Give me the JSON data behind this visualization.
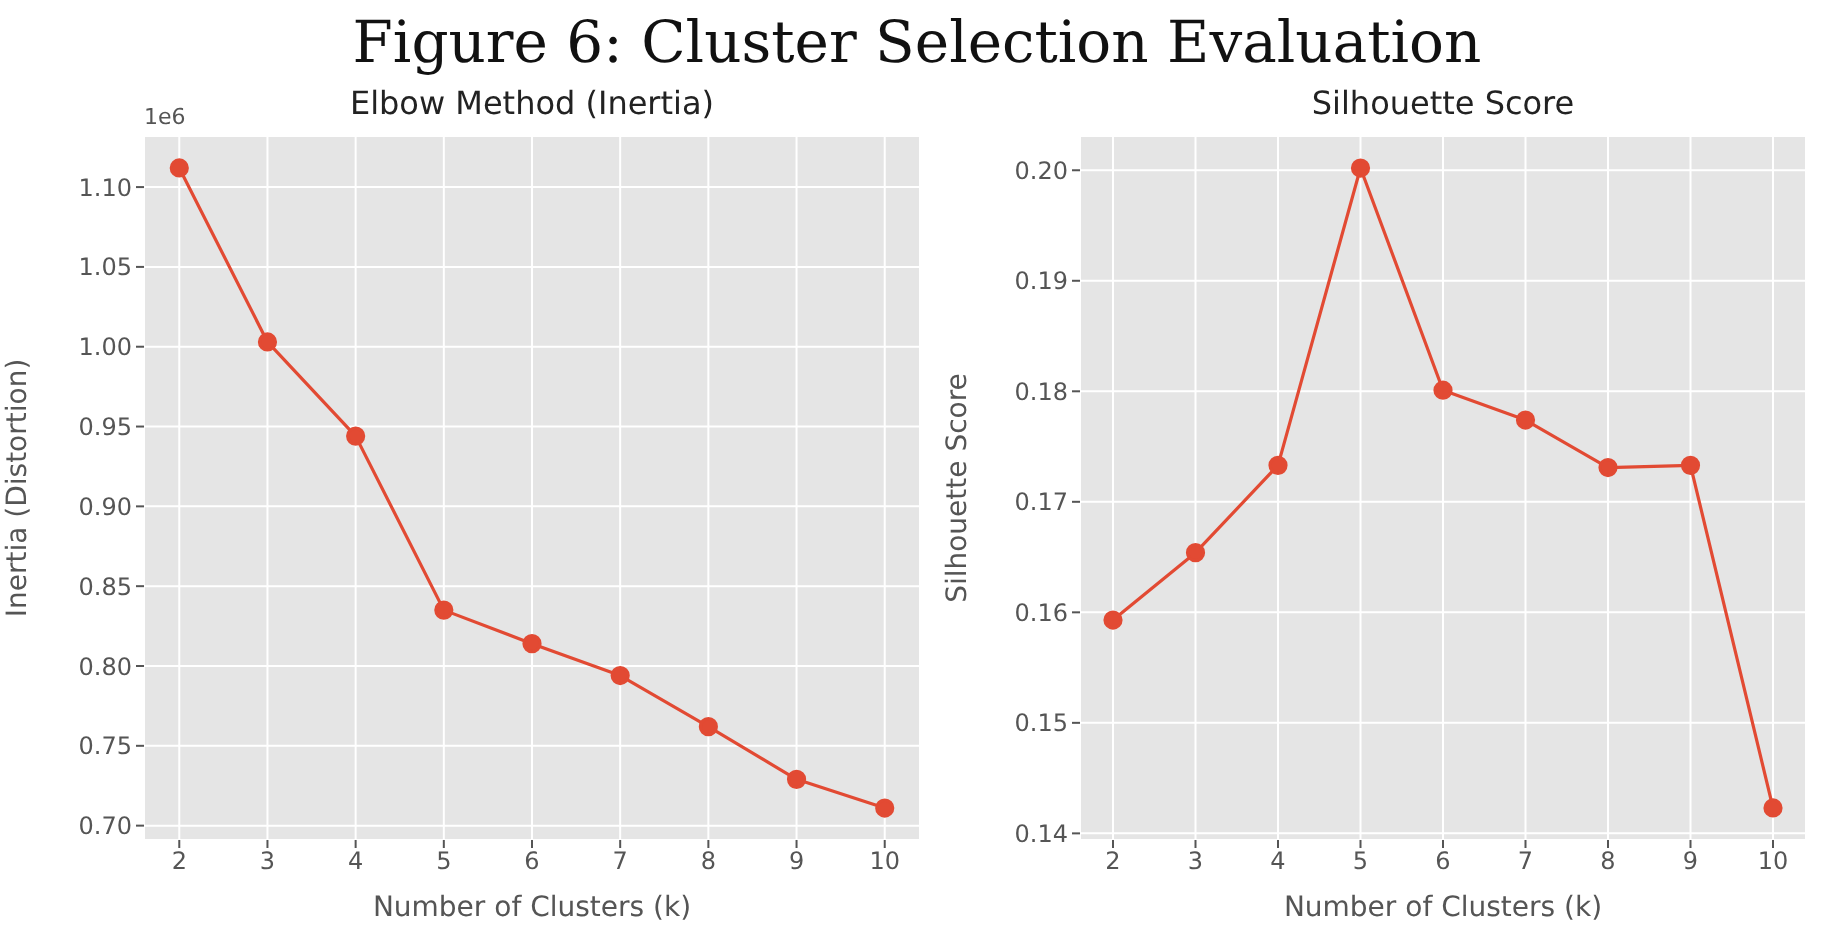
{
  "chart_data": [
    {
      "type": "line",
      "title": "Elbow Method (Inertia)",
      "xlabel": "Number of Clusters (k)",
      "ylabel": "Inertia (Distortion)",
      "annotations": [
        "Figure 6: Cluster Selection Evaluation",
        "1e6"
      ],
      "x": [
        2,
        3,
        4,
        5,
        6,
        7,
        8,
        9,
        10
      ],
      "series": [
        {
          "color": "#e24a33",
          "values": [
            1.112,
            1.003,
            0.944,
            0.835,
            0.814,
            0.794,
            0.762,
            0.729,
            0.711
          ]
        }
      ],
      "xlim": [
        1.6,
        10.4
      ],
      "xticks": [
        2,
        3,
        4,
        5,
        6,
        7,
        8,
        9,
        10
      ],
      "ylim": [
        0.691,
        1.132
      ],
      "yticks": [
        {
          "value": 0.7,
          "label": "0.70"
        },
        {
          "value": 0.75,
          "label": "0.75"
        },
        {
          "value": 0.8,
          "label": "0.80"
        },
        {
          "value": 0.85,
          "label": "0.85"
        },
        {
          "value": 0.9,
          "label": "0.90"
        },
        {
          "value": 0.95,
          "label": "0.95"
        },
        {
          "value": 1.0,
          "label": "1.00"
        },
        {
          "value": 1.05,
          "label": "1.05"
        },
        {
          "value": 1.1,
          "label": "1.10"
        }
      ],
      "grid": true,
      "marker": "circle",
      "line_style": "solid"
    },
    {
      "type": "line",
      "title": "Silhouette Score",
      "xlabel": "Number of Clusters (k)",
      "ylabel": "Silhouette Score",
      "x": [
        2,
        3,
        4,
        5,
        6,
        7,
        8,
        9,
        10
      ],
      "series": [
        {
          "color": "#e24a33",
          "values": [
            0.1593,
            0.1654,
            0.1733,
            0.2002,
            0.1801,
            0.1774,
            0.1731,
            0.1733,
            0.1423
          ]
        }
      ],
      "xlim": [
        1.6,
        10.4
      ],
      "xticks": [
        2,
        3,
        4,
        5,
        6,
        7,
        8,
        9,
        10
      ],
      "ylim": [
        0.1394,
        0.2031
      ],
      "yticks": [
        {
          "value": 0.14,
          "label": "0.14"
        },
        {
          "value": 0.15,
          "label": "0.15"
        },
        {
          "value": 0.16,
          "label": "0.16"
        },
        {
          "value": 0.17,
          "label": "0.17"
        },
        {
          "value": 0.18,
          "label": "0.18"
        },
        {
          "value": 0.19,
          "label": "0.19"
        },
        {
          "value": 0.2,
          "label": "0.20"
        }
      ],
      "grid": true,
      "marker": "circle",
      "line_style": "solid"
    }
  ]
}
